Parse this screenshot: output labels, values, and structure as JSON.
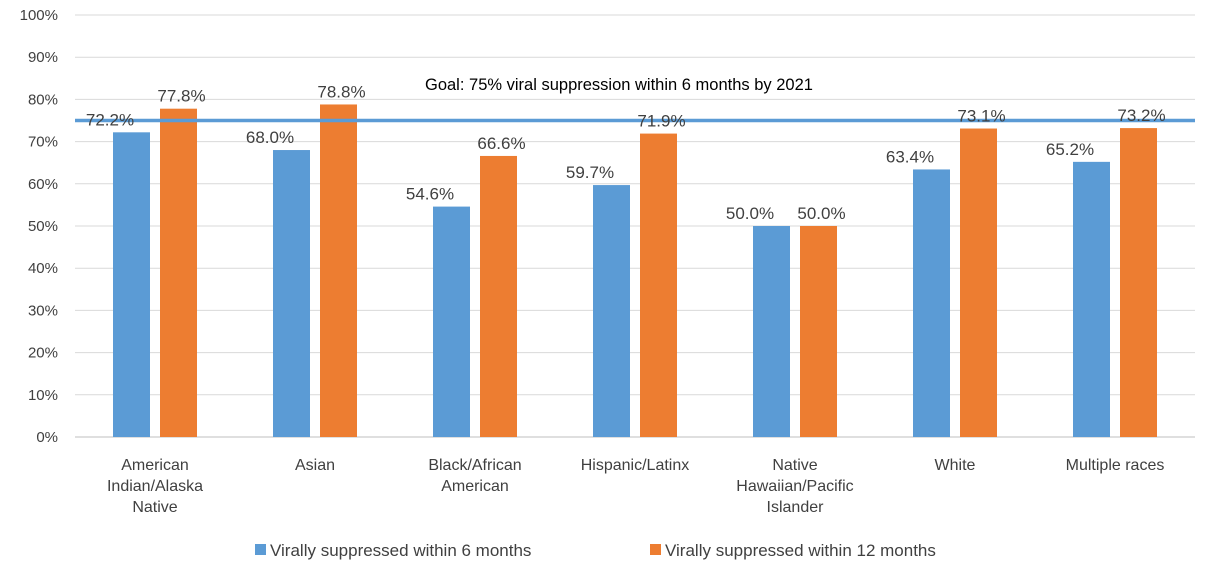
{
  "chart_data": {
    "type": "bar",
    "categories": [
      [
        "American",
        "Indian/Alaska",
        "Native"
      ],
      [
        "Asian"
      ],
      [
        "Black/African",
        "American"
      ],
      [
        "Hispanic/Latinx"
      ],
      [
        "Native",
        "Hawaiian/Pacific",
        "Islander"
      ],
      [
        "White"
      ],
      [
        "Multiple races"
      ]
    ],
    "series": [
      {
        "name": "Virally suppressed within 6 months",
        "color": "#5B9BD5",
        "values": [
          72.2,
          68.0,
          54.6,
          59.7,
          50.0,
          63.4,
          65.2
        ],
        "labels": [
          "72.2%",
          "68.0%",
          "54.6%",
          "59.7%",
          "50.0%",
          "63.4%",
          "65.2%"
        ]
      },
      {
        "name": "Virally suppressed within 12 months",
        "color": "#ED7D31",
        "values": [
          77.8,
          78.8,
          66.6,
          71.9,
          50.0,
          73.1,
          73.2
        ],
        "labels": [
          "77.8%",
          "78.8%",
          "66.6%",
          "71.9%",
          "50.0%",
          "73.1%",
          "73.2%"
        ]
      }
    ],
    "ylim": [
      0,
      100
    ],
    "yticks": [
      "0%",
      "10%",
      "20%",
      "30%",
      "40%",
      "50%",
      "60%",
      "70%",
      "80%",
      "90%",
      "100%"
    ],
    "grid": true,
    "legend_position": "bottom",
    "reference_line": {
      "value": 75,
      "label": "Goal: 75% viral suppression within 6 months by 2021",
      "color": "#5B9BD5"
    }
  }
}
